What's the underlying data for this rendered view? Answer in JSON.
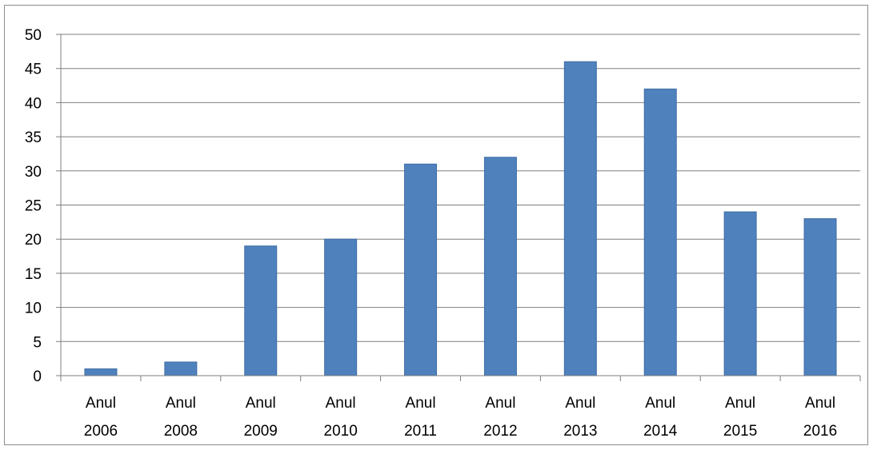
{
  "chart_data": {
    "type": "bar",
    "title": "",
    "xlabel": "",
    "ylabel": "",
    "categories": [
      [
        "Anul",
        "2006"
      ],
      [
        "Anul",
        "2008"
      ],
      [
        "Anul",
        "2009"
      ],
      [
        "Anul",
        "2010"
      ],
      [
        "Anul",
        "2011"
      ],
      [
        "Anul",
        "2012"
      ],
      [
        "Anul",
        "2013"
      ],
      [
        "Anul",
        "2014"
      ],
      [
        "Anul",
        "2015"
      ],
      [
        "Anul",
        "2016"
      ]
    ],
    "values": [
      1,
      2,
      19,
      20,
      31,
      32,
      46,
      42,
      24,
      23
    ],
    "ylim": [
      0,
      50
    ],
    "yticks": [
      "0",
      "5",
      "10",
      "15",
      "20",
      "25",
      "30",
      "35",
      "40",
      "45",
      "50"
    ],
    "grid": true,
    "legend": "none",
    "colors": {
      "bar": "#4f81bd",
      "bar_edge": "#3f6ea6",
      "grid": "#7f7f7f",
      "axis": "#7f7f7f",
      "border": "#8c8c8c"
    }
  }
}
